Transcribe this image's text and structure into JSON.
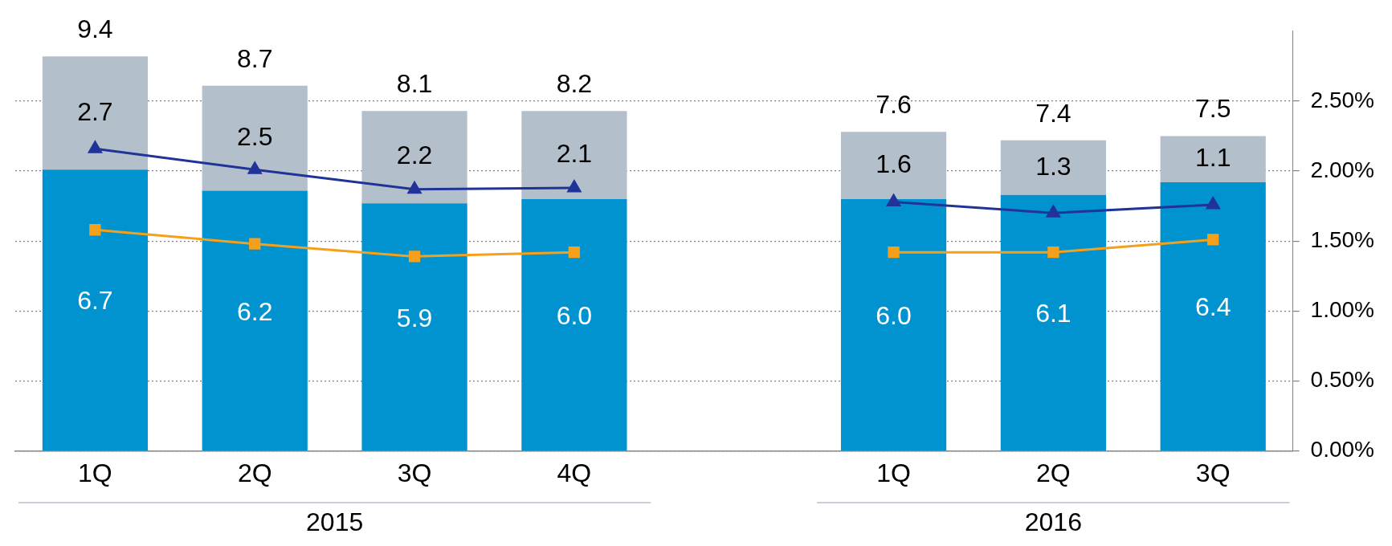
{
  "chart_data": {
    "type": "bar",
    "stacked": true,
    "categories": [
      "1Q",
      "2Q",
      "3Q",
      "4Q",
      null,
      "1Q",
      "2Q",
      "3Q"
    ],
    "series": [
      {
        "color": "#0093d0",
        "values": [
          6.7,
          6.2,
          5.9,
          6.0,
          null,
          6.0,
          6.1,
          6.4
        ],
        "value_labels": [
          "6.7",
          "6.2",
          "5.9",
          "6.0",
          null,
          "6.0",
          "6.1",
          "6.4"
        ]
      },
      {
        "color": "#b4bfcc",
        "values": [
          2.7,
          2.5,
          2.2,
          2.1,
          null,
          1.6,
          1.3,
          1.1
        ],
        "value_labels": [
          "2.7",
          "2.5",
          "2.2",
          "2.1",
          null,
          "1.6",
          "1.3",
          "1.1"
        ]
      },
      {
        "type": "line",
        "axis": "y2",
        "color": "#1f3399",
        "marker": "triangle",
        "values": [
          2.16,
          2.01,
          1.87,
          1.88,
          null,
          1.78,
          1.7,
          1.76
        ]
      },
      {
        "type": "line",
        "axis": "y2",
        "color": "#f5a01a",
        "marker": "square",
        "values": [
          1.58,
          1.48,
          1.39,
          1.42,
          null,
          1.42,
          1.42,
          1.51
        ]
      }
    ],
    "totals": [
      "9.4",
      "8.7",
      "8.1",
      "8.2",
      null,
      "7.6",
      "7.4",
      "7.5"
    ],
    "ylim": [
      0,
      10
    ],
    "y2lim": [
      0,
      3
    ],
    "y2ticks": [
      {
        "value": 0,
        "label": "0.00%"
      },
      {
        "value": 0.5,
        "label": "0.50%"
      },
      {
        "value": 1,
        "label": "1.00%"
      },
      {
        "value": 1.5,
        "label": "1.50%"
      },
      {
        "value": 2,
        "label": "2.00%"
      },
      {
        "value": 2.5,
        "label": "2.50%"
      }
    ],
    "grid": "y",
    "legend": false,
    "annotations": [
      "2015",
      "2016"
    ]
  }
}
